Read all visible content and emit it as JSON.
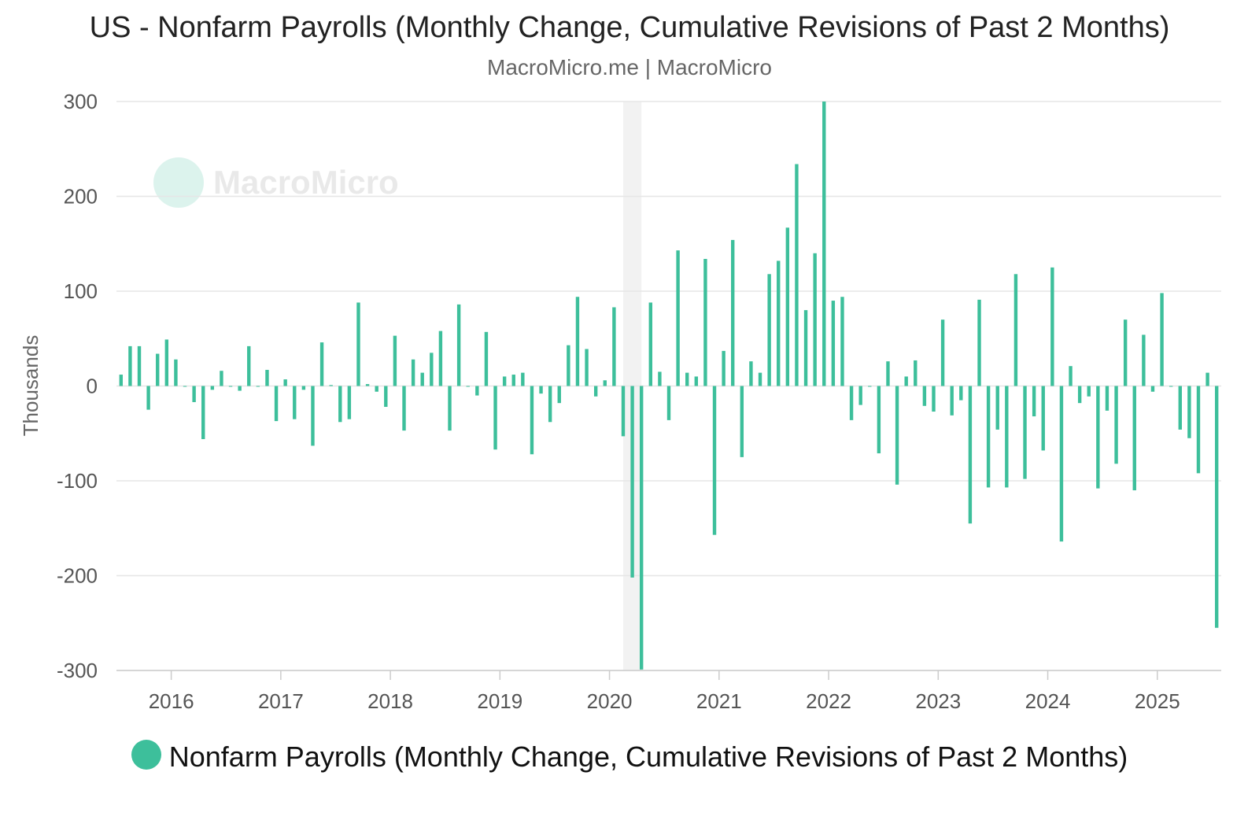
{
  "chart_data": {
    "type": "bar",
    "title": "US - Nonfarm Payrolls (Monthly Change, Cumulative Revisions of Past 2 Months)",
    "subtitle": "MacroMicro.me | MacroMicro",
    "ylabel": "Thousands",
    "xlabel": "",
    "ylim": [
      -300,
      300
    ],
    "yticks": [
      300,
      200,
      100,
      0,
      -100,
      -200,
      -300
    ],
    "xlim": [
      "2015-07",
      "2025-08"
    ],
    "xticks": [
      "2016",
      "2017",
      "2018",
      "2019",
      "2020",
      "2021",
      "2022",
      "2023",
      "2024",
      "2025"
    ],
    "grid": true,
    "legend_position": "bottom",
    "watermark": "MacroMicro",
    "shaded_periods": [
      {
        "start": "2020-02",
        "end": "2020-04"
      }
    ],
    "colors": {
      "bar": "#3dbf9b",
      "grid": "#e6e6e6",
      "shade": "#f2f2f2"
    },
    "series": [
      {
        "name": "Nonfarm Payrolls (Monthly Change, Cumulative Revisions of Past 2 Months)",
        "x": [
          "2015-07",
          "2015-08",
          "2015-09",
          "2015-10",
          "2015-11",
          "2015-12",
          "2016-01",
          "2016-02",
          "2016-03",
          "2016-04",
          "2016-05",
          "2016-06",
          "2016-07",
          "2016-08",
          "2016-09",
          "2016-10",
          "2016-11",
          "2016-12",
          "2017-01",
          "2017-02",
          "2017-03",
          "2017-04",
          "2017-05",
          "2017-06",
          "2017-07",
          "2017-08",
          "2017-09",
          "2017-10",
          "2017-11",
          "2017-12",
          "2018-01",
          "2018-02",
          "2018-03",
          "2018-04",
          "2018-05",
          "2018-06",
          "2018-07",
          "2018-08",
          "2018-09",
          "2018-10",
          "2018-11",
          "2018-12",
          "2019-01",
          "2019-02",
          "2019-03",
          "2019-04",
          "2019-05",
          "2019-06",
          "2019-07",
          "2019-08",
          "2019-09",
          "2019-10",
          "2019-11",
          "2019-12",
          "2020-01",
          "2020-02",
          "2020-03",
          "2020-04",
          "2020-05",
          "2020-06",
          "2020-07",
          "2020-08",
          "2020-09",
          "2020-10",
          "2020-11",
          "2020-12",
          "2021-01",
          "2021-02",
          "2021-03",
          "2021-04",
          "2021-05",
          "2021-06",
          "2021-07",
          "2021-08",
          "2021-09",
          "2021-10",
          "2021-11",
          "2021-12",
          "2022-01",
          "2022-02",
          "2022-03",
          "2022-04",
          "2022-05",
          "2022-06",
          "2022-07",
          "2022-08",
          "2022-09",
          "2022-10",
          "2022-11",
          "2022-12",
          "2023-01",
          "2023-02",
          "2023-03",
          "2023-04",
          "2023-05",
          "2023-06",
          "2023-07",
          "2023-08",
          "2023-09",
          "2023-10",
          "2023-11",
          "2023-12",
          "2024-01",
          "2024-02",
          "2024-03",
          "2024-04",
          "2024-05",
          "2024-06",
          "2024-07",
          "2024-08",
          "2024-09",
          "2024-10",
          "2024-11",
          "2024-12",
          "2025-01",
          "2025-02",
          "2025-03",
          "2025-04",
          "2025-05",
          "2025-06",
          "2025-07"
        ],
        "values": [
          12,
          42,
          42,
          -25,
          34,
          49,
          28,
          0,
          -17,
          -56,
          -4,
          16,
          0,
          -5,
          42,
          0,
          17,
          -37,
          7,
          -35,
          -4,
          -63,
          46,
          1,
          -38,
          -35,
          88,
          2,
          -6,
          -22,
          53,
          -47,
          28,
          14,
          35,
          58,
          -47,
          86,
          0,
          -10,
          57,
          -67,
          10,
          12,
          14,
          -72,
          -8,
          -38,
          -18,
          43,
          94,
          39,
          -11,
          6,
          83,
          -53,
          -202,
          -299,
          88,
          15,
          -36,
          143,
          14,
          10,
          134,
          -157,
          37,
          154,
          -75,
          26,
          14,
          118,
          132,
          167,
          234,
          80,
          140,
          300,
          90,
          94,
          -36,
          -20,
          0,
          -71,
          26,
          -104,
          10,
          27,
          -21,
          -27,
          70,
          -31,
          -15,
          -145,
          91,
          -107,
          -46,
          -107,
          118,
          -98,
          -32,
          -68,
          125,
          -164,
          21,
          -18,
          -11,
          -108,
          -26,
          -82,
          70,
          -110,
          54,
          -6,
          98,
          0,
          -46,
          -55,
          -92,
          14,
          -255
        ]
      }
    ]
  }
}
